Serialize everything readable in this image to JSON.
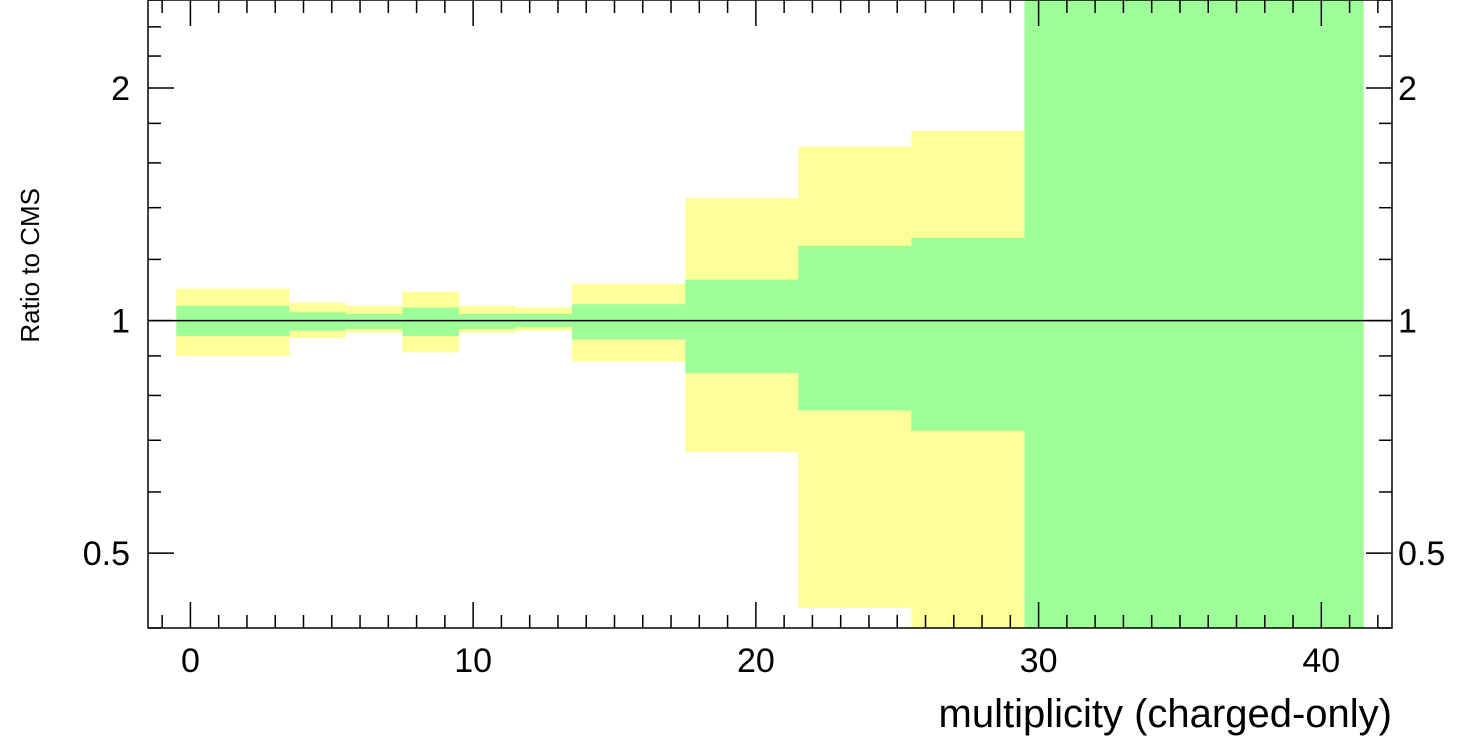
{
  "chart_data": {
    "type": "area",
    "xlabel": "multiplicity (charged-only)",
    "ylabel": "Ratio to CMS",
    "xlim": [
      -1.5,
      42.5
    ],
    "ylim": [
      0.4,
      2.6
    ],
    "y_scale": "log",
    "reference_line": 1,
    "x_tick_labels": [
      "0",
      "10",
      "20",
      "30",
      "40"
    ],
    "x_tick_values": [
      0,
      10,
      20,
      30,
      40
    ],
    "y_tick_labels": [
      "0.5",
      "1",
      "2"
    ],
    "y_tick_values": [
      0.5,
      1,
      2
    ],
    "colors": {
      "inner_band": "#9eff99",
      "outer_band": "#ffff99",
      "line": "#000000"
    },
    "series": [
      {
        "bins": [
          {
            "x_low": -0.5,
            "x_high": 3.5,
            "low": 0.9,
            "high": 1.1
          },
          {
            "x_low": 3.5,
            "x_high": 5.5,
            "low": 0.95,
            "high": 1.055
          },
          {
            "x_low": 5.5,
            "x_high": 7.5,
            "low": 0.965,
            "high": 1.045
          },
          {
            "x_low": 7.5,
            "x_high": 9.5,
            "low": 0.91,
            "high": 1.09
          },
          {
            "x_low": 9.5,
            "x_high": 11.5,
            "low": 0.965,
            "high": 1.045
          },
          {
            "x_low": 11.5,
            "x_high": 13.5,
            "low": 0.97,
            "high": 1.04
          },
          {
            "x_low": 13.5,
            "x_high": 17.5,
            "low": 0.885,
            "high": 1.115
          },
          {
            "x_low": 17.5,
            "x_high": 21.5,
            "low": 0.675,
            "high": 1.44
          },
          {
            "x_low": 21.5,
            "x_high": 25.5,
            "low": 0.425,
            "high": 1.68
          },
          {
            "x_low": 25.5,
            "x_high": 29.5,
            "low": 0.4,
            "high": 1.76
          },
          {
            "x_low": 29.5,
            "x_high": 41.5,
            "low": 0.4,
            "high": 2.6
          }
        ]
      },
      {
        "bins": [
          {
            "x_low": -0.5,
            "x_high": 3.5,
            "low": 0.955,
            "high": 1.045
          },
          {
            "x_low": 3.5,
            "x_high": 5.5,
            "low": 0.97,
            "high": 1.025
          },
          {
            "x_low": 5.5,
            "x_high": 7.5,
            "low": 0.975,
            "high": 1.02
          },
          {
            "x_low": 7.5,
            "x_high": 9.5,
            "low": 0.955,
            "high": 1.04
          },
          {
            "x_low": 9.5,
            "x_high": 11.5,
            "low": 0.975,
            "high": 1.02
          },
          {
            "x_low": 11.5,
            "x_high": 13.5,
            "low": 0.98,
            "high": 1.02
          },
          {
            "x_low": 13.5,
            "x_high": 17.5,
            "low": 0.945,
            "high": 1.05
          },
          {
            "x_low": 17.5,
            "x_high": 21.5,
            "low": 0.855,
            "high": 1.13
          },
          {
            "x_low": 21.5,
            "x_high": 25.5,
            "low": 0.765,
            "high": 1.25
          },
          {
            "x_low": 25.5,
            "x_high": 29.5,
            "low": 0.72,
            "high": 1.28
          },
          {
            "x_low": 29.5,
            "x_high": 41.5,
            "low": 0.4,
            "high": 2.6
          }
        ]
      }
    ]
  }
}
